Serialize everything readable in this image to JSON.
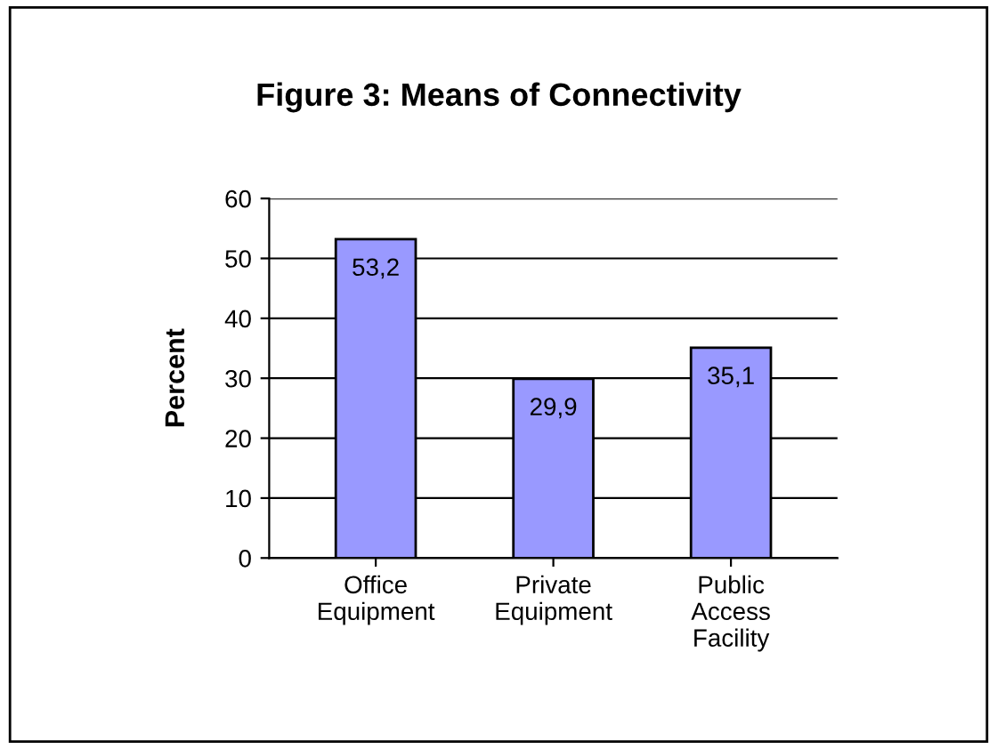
{
  "chart_data": {
    "type": "bar",
    "title": "Figure 3: Means of Connectivity",
    "ylabel": "Percent",
    "categories": [
      "Office\nEquipment",
      "Private\nEquipment",
      "Public\nAccess\nFacility"
    ],
    "values": [
      53.2,
      29.9,
      35.1
    ],
    "value_labels": [
      "53,2",
      "29,9",
      "35,1"
    ],
    "color": "#9999ff",
    "ylim": [
      0,
      60
    ],
    "yticks": [
      0,
      10,
      20,
      30,
      40,
      50,
      60
    ],
    "grid": "y",
    "legend": false
  }
}
